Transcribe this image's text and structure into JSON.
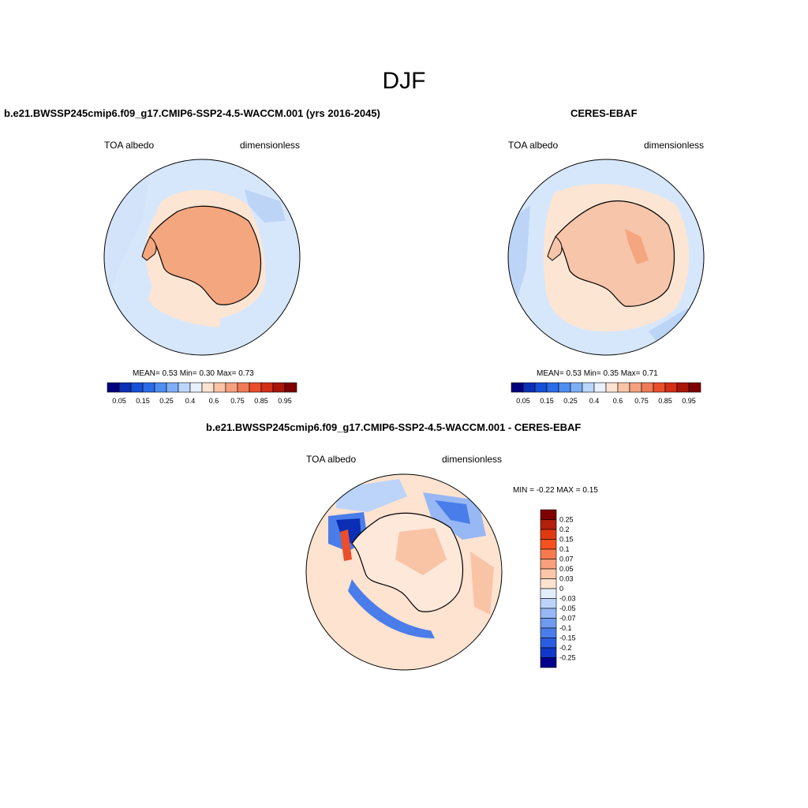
{
  "season": "DJF",
  "top_left": {
    "title": "b.e21.BWSSP245cmip6.f09_g17.CMIP6-SSP2-4.5-WACCM.001 (yrs 2016-2045)",
    "variable": "TOA albedo",
    "units": "dimensionless",
    "stats": "MEAN=   0.53  Min=   0.30  Max=   0.73"
  },
  "top_right": {
    "title": "CERES-EBAF",
    "variable": "TOA albedo",
    "units": "dimensionless",
    "stats": "MEAN=   0.53  Min=   0.35  Max=   0.71"
  },
  "bottom": {
    "title": "b.e21.BWSSP245cmip6.f09_g17.CMIP6-SSP2-4.5-WACCM.001 - CERES-EBAF",
    "variable": "TOA albedo",
    "units": "dimensionless",
    "minmax": "MIN =  -0.22 MAX =   0.15"
  },
  "abs_colorbar": {
    "colors": [
      "#00007f",
      "#0a2fb4",
      "#1650d6",
      "#2a6be8",
      "#4f8ef0",
      "#7eaef5",
      "#bcd6fb",
      "#e8f1fd",
      "#fde3d2",
      "#f9c3a6",
      "#f5a07e",
      "#f07a55",
      "#ea4e2c",
      "#d42e14",
      "#a91508",
      "#7f0000"
    ],
    "labels": [
      "0.05",
      "0.15",
      "0.25",
      "0.4",
      "0.6",
      "0.75",
      "0.85",
      "0.95"
    ]
  },
  "diff_colorbar": {
    "colors": [
      "#7f0000",
      "#b3200c",
      "#e03a13",
      "#f5521f",
      "#f77a4f",
      "#f9a07f",
      "#fbc6a9",
      "#fde2d0",
      "#e3eefc",
      "#bcd4f9",
      "#97b8f5",
      "#6f9af0",
      "#4a7de9",
      "#2a5ddf",
      "#1038c9",
      "#00008b"
    ],
    "labels": [
      "0.25",
      "0.2",
      "0.15",
      "0.1",
      "0.07",
      "0.05",
      "0.03",
      "0",
      "-0.03",
      "-0.05",
      "-0.07",
      "-0.1",
      "-0.15",
      "-0.2",
      "-0.25"
    ]
  },
  "map_colors": {
    "ocean": "#d6e7fb",
    "sea_ice": "#fde5d3",
    "land_model": "#f4a67f",
    "land_obs": "#f6c5aa",
    "open_ocean": "#bcd4f6",
    "diff_background": "#fde3d0",
    "diff_neg": "#4a7de9",
    "diff_strong_neg": "#0a2fb4",
    "diff_pos": "#f4a07e"
  }
}
